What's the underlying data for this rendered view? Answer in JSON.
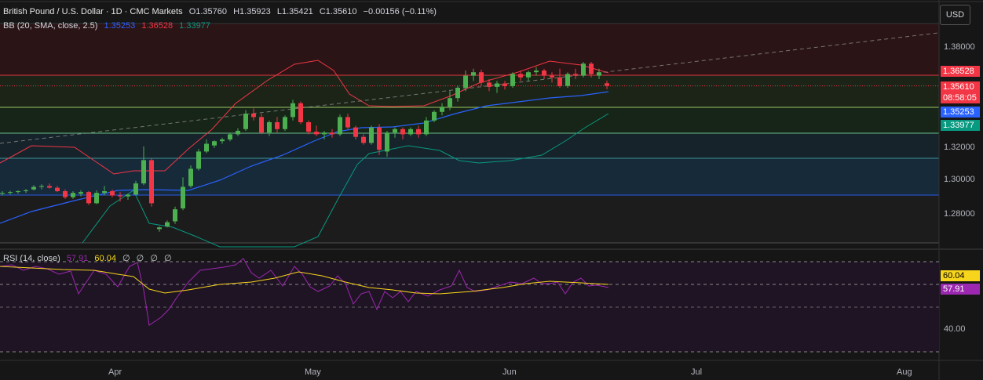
{
  "header": {
    "symbol": "British Pound / U.S. Dollar · 1D · CMC Markets",
    "open": "O1.35760",
    "high": "H1.35923",
    "low": "L1.35421",
    "close": "C1.35610",
    "change": "−0.00156 (−0.11%)"
  },
  "bb": {
    "label": "BB (20, SMA, close, 2.5)",
    "basis": "1.35253",
    "upper": "1.36528",
    "lower": "1.33977",
    "colors": {
      "basis": "#2962ff",
      "upper": "#f23645",
      "lower": "#089981"
    }
  },
  "rsi": {
    "label": "RSI (14, close)",
    "value": "57.91",
    "ma": "60.04",
    "extras": [
      "∅",
      "∅",
      "∅",
      "∅"
    ],
    "colors": {
      "rsi": "#9c27b0",
      "ma": "#f7d51c"
    }
  },
  "price_axis": {
    "currency_button": "USD",
    "ticks": [
      "1.38000",
      "1.32000",
      "1.30000",
      "1.28000"
    ],
    "labels": {
      "upper": "1.36528",
      "last": "1.35610",
      "countdown": "08:58:05",
      "basis": "1.35253",
      "lower": "1.33977"
    }
  },
  "rsi_axis": {
    "ticks": [
      "40.00"
    ],
    "labels": {
      "ma": "60.04",
      "rsi": "57.91"
    }
  },
  "time_axis": {
    "labels": [
      "Apr",
      "May",
      "Jun",
      "Jul",
      "Aug"
    ]
  },
  "chart_data": {
    "type": "candlestick",
    "series_candles": [
      [
        1.2935,
        1.295,
        1.2925,
        1.294
      ],
      [
        1.294,
        1.2952,
        1.293,
        1.2945
      ],
      [
        1.2945,
        1.2955,
        1.2935,
        1.295
      ],
      [
        1.295,
        1.2962,
        1.294,
        1.2955
      ],
      [
        1.296,
        1.2985,
        1.2955,
        1.2975
      ],
      [
        1.2975,
        1.299,
        1.296,
        1.298
      ],
      [
        1.298,
        1.2995,
        1.2965,
        1.297
      ],
      [
        1.297,
        1.298,
        1.2945,
        1.295
      ],
      [
        1.295,
        1.296,
        1.2905,
        1.2915
      ],
      [
        1.2915,
        1.295,
        1.2905,
        1.294
      ],
      [
        1.2935,
        1.2955,
        1.292,
        1.2945
      ],
      [
        1.2945,
        1.295,
        1.287,
        1.288
      ],
      [
        1.288,
        1.2955,
        1.2875,
        1.294
      ],
      [
        1.294,
        1.298,
        1.2925,
        1.295
      ],
      [
        1.295,
        1.296,
        1.2915,
        1.2925
      ],
      [
        1.2925,
        1.2945,
        1.289,
        1.292
      ],
      [
        1.292,
        1.2935,
        1.29,
        1.293
      ],
      [
        1.293,
        1.301,
        1.2925,
        1.2995
      ],
      [
        1.2995,
        1.321,
        1.2985,
        1.313
      ],
      [
        1.313,
        1.314,
        1.286,
        1.288
      ],
      [
        1.273,
        1.2745,
        1.2715,
        1.274
      ],
      [
        1.2745,
        1.278,
        1.274,
        1.277
      ],
      [
        1.2775,
        1.286,
        1.276,
        1.2845
      ],
      [
        1.285,
        1.303,
        1.284,
        1.2975
      ],
      [
        1.298,
        1.31,
        1.297,
        1.308
      ],
      [
        1.308,
        1.3195,
        1.307,
        1.318
      ],
      [
        1.318,
        1.325,
        1.317,
        1.3225
      ],
      [
        1.3215,
        1.3245,
        1.32,
        1.324
      ],
      [
        1.324,
        1.326,
        1.3225,
        1.325
      ],
      [
        1.325,
        1.329,
        1.324,
        1.328
      ],
      [
        1.328,
        1.3315,
        1.327,
        1.33
      ],
      [
        1.331,
        1.342,
        1.33,
        1.34
      ],
      [
        1.34,
        1.343,
        1.336,
        1.338
      ],
      [
        1.338,
        1.34,
        1.328,
        1.329
      ],
      [
        1.329,
        1.336,
        1.327,
        1.335
      ],
      [
        1.335,
        1.338,
        1.329,
        1.331
      ],
      [
        1.331,
        1.339,
        1.33,
        1.338
      ],
      [
        1.338,
        1.348,
        1.336,
        1.346
      ],
      [
        1.346,
        1.347,
        1.334,
        1.335
      ],
      [
        1.335,
        1.336,
        1.328,
        1.3295
      ],
      [
        1.3295,
        1.333,
        1.327,
        1.328
      ],
      [
        1.328,
        1.33,
        1.325,
        1.329
      ],
      [
        1.329,
        1.331,
        1.326,
        1.328
      ],
      [
        1.328,
        1.3395,
        1.327,
        1.338
      ],
      [
        1.338,
        1.34,
        1.331,
        1.332
      ],
      [
        1.332,
        1.333,
        1.325,
        1.3265
      ],
      [
        1.3265,
        1.328,
        1.322,
        1.323
      ],
      [
        1.323,
        1.333,
        1.322,
        1.332
      ],
      [
        1.332,
        1.334,
        1.316,
        1.319
      ],
      [
        1.318,
        1.33,
        1.315,
        1.329
      ],
      [
        1.329,
        1.332,
        1.326,
        1.331
      ],
      [
        1.331,
        1.332,
        1.325,
        1.328
      ],
      [
        1.328,
        1.332,
        1.327,
        1.331
      ],
      [
        1.331,
        1.333,
        1.326,
        1.328
      ],
      [
        1.328,
        1.338,
        1.327,
        1.336
      ],
      [
        1.336,
        1.342,
        1.335,
        1.341
      ],
      [
        1.341,
        1.346,
        1.339,
        1.344
      ],
      [
        1.344,
        1.353,
        1.342,
        1.349
      ],
      [
        1.349,
        1.356,
        1.347,
        1.355
      ],
      [
        1.355,
        1.365,
        1.353,
        1.362
      ],
      [
        1.362,
        1.366,
        1.359,
        1.364
      ],
      [
        1.364,
        1.3655,
        1.356,
        1.358
      ],
      [
        1.358,
        1.36,
        1.353,
        1.3555
      ],
      [
        1.3555,
        1.359,
        1.352,
        1.3575
      ],
      [
        1.3575,
        1.359,
        1.354,
        1.356
      ],
      [
        1.356,
        1.364,
        1.355,
        1.363
      ],
      [
        1.363,
        1.365,
        1.359,
        1.361
      ],
      [
        1.361,
        1.365,
        1.359,
        1.364
      ],
      [
        1.364,
        1.367,
        1.362,
        1.365
      ],
      [
        1.365,
        1.366,
        1.36,
        1.362
      ],
      [
        1.362,
        1.364,
        1.358,
        1.361
      ],
      [
        1.361,
        1.366,
        1.355,
        1.356
      ],
      [
        1.356,
        1.364,
        1.355,
        1.363
      ],
      [
        1.363,
        1.366,
        1.36,
        1.362
      ],
      [
        1.362,
        1.37,
        1.361,
        1.369
      ],
      [
        1.369,
        1.37,
        1.361,
        1.363
      ],
      [
        1.362,
        1.366,
        1.36,
        1.364
      ],
      [
        1.3576,
        1.35923,
        1.35421,
        1.3561
      ]
    ]
  }
}
